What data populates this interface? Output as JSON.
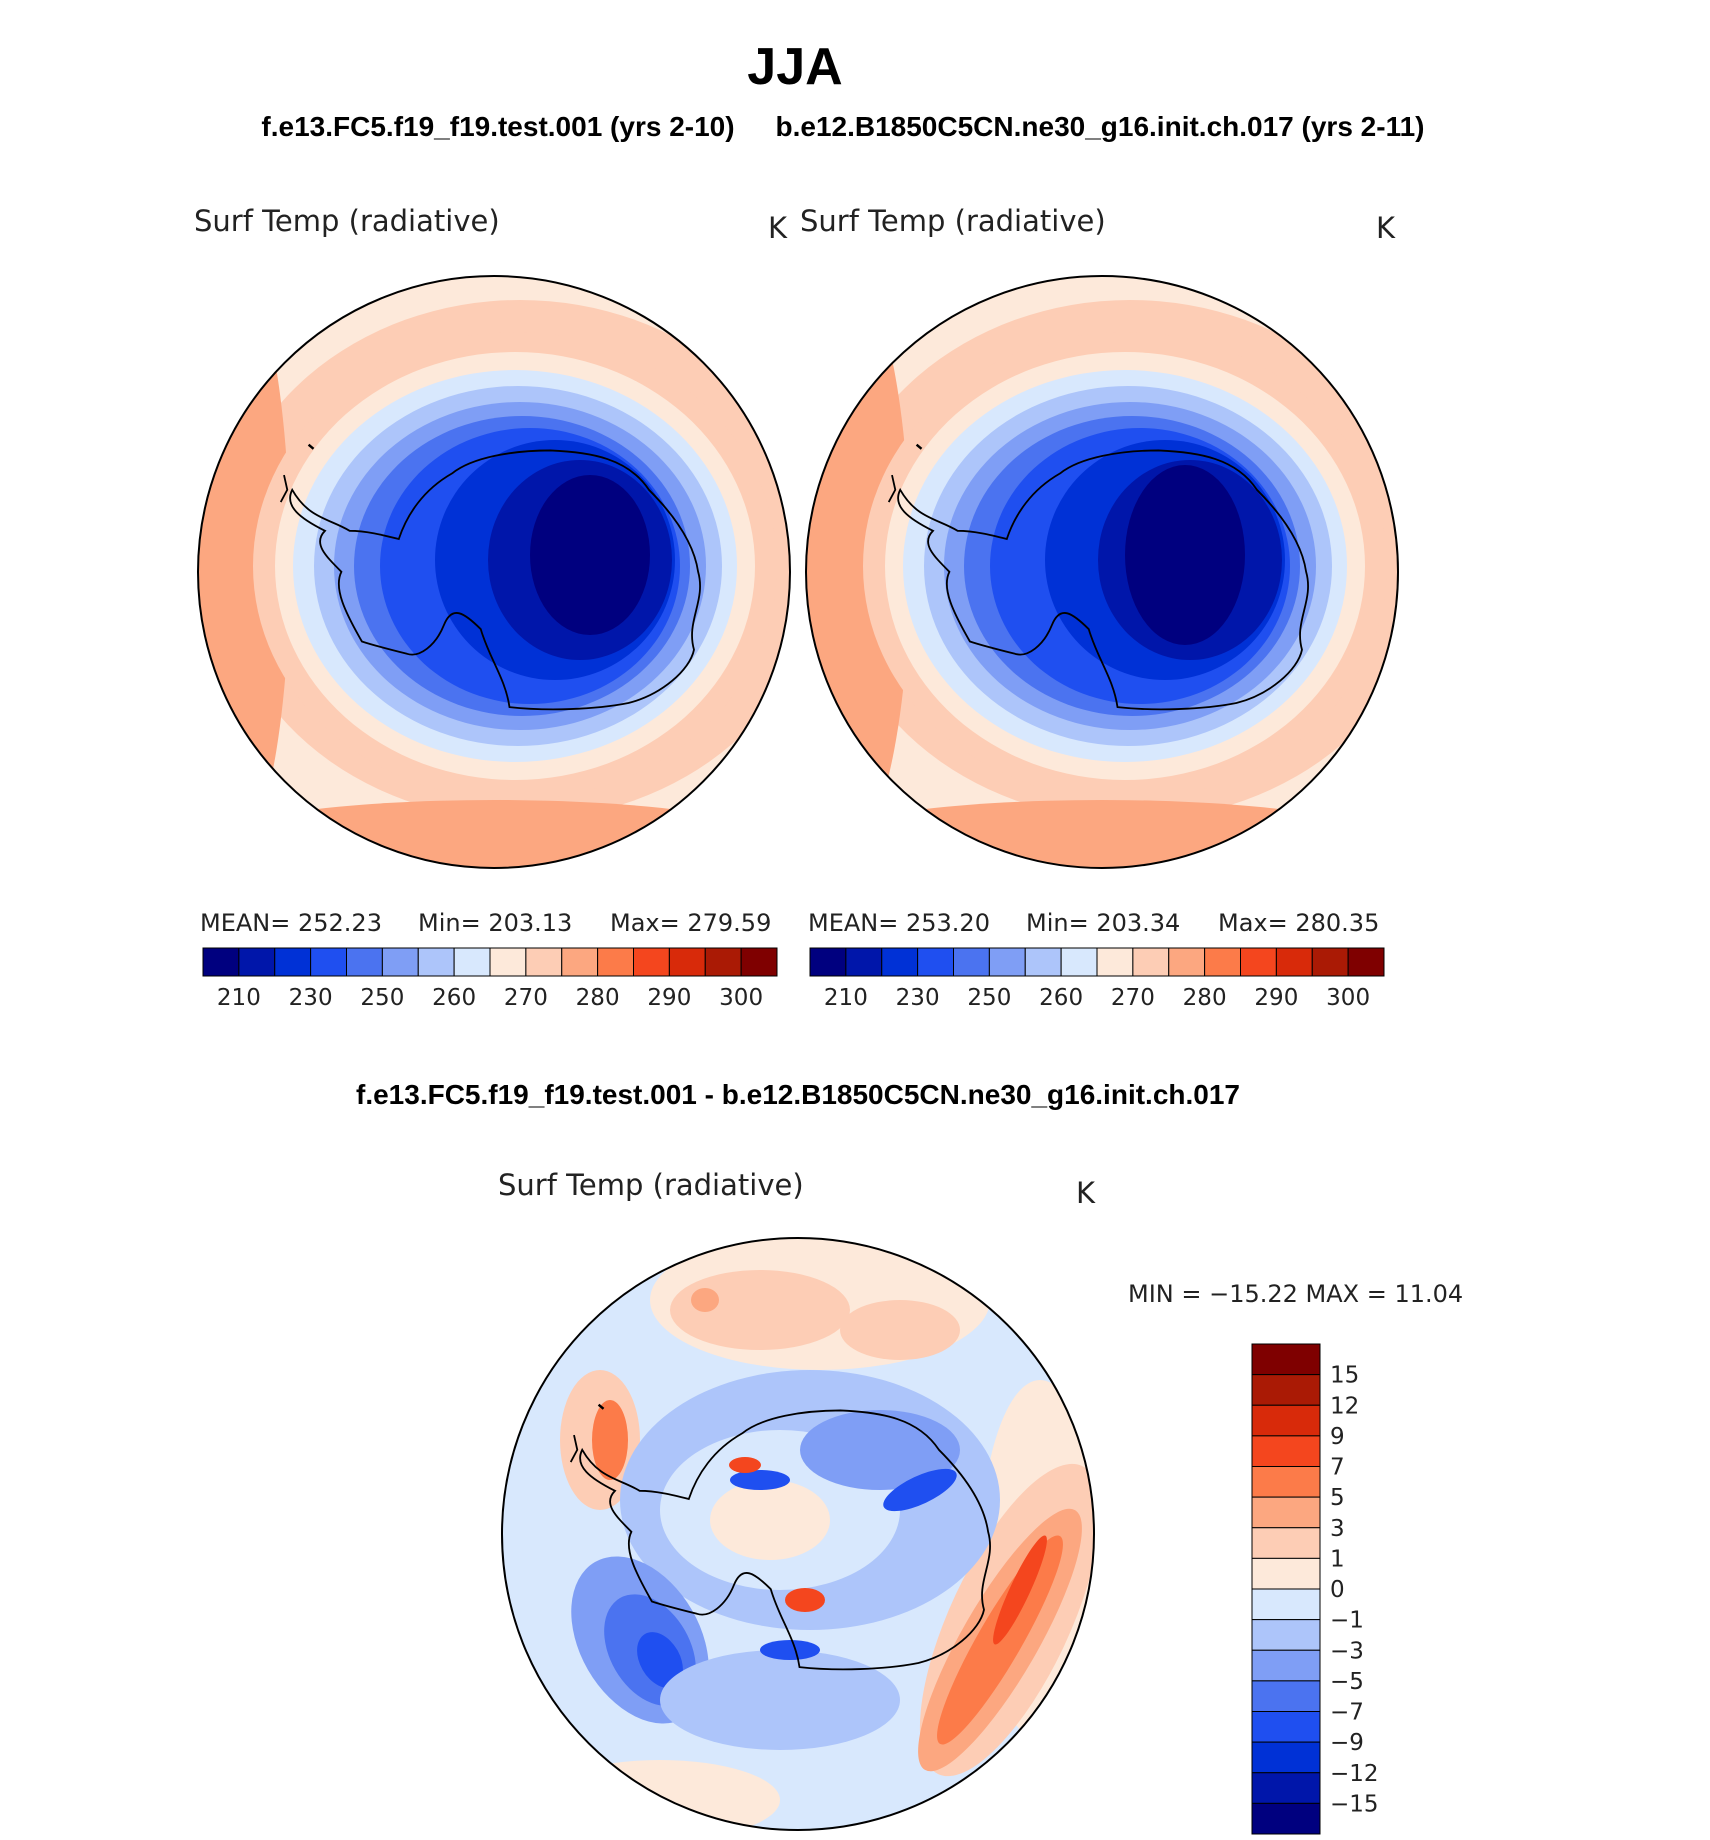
{
  "title": "JJA",
  "top_left_case": "f.e13.FC5.f19_f19.test.001 (yrs 2-10)",
  "top_right_case": "b.e12.B1850C5CN.ne30_g16.init.ch.017 (yrs 2-11)",
  "diff_title": "f.e13.FC5.f19_f19.test.001 - b.e12.B1850C5CN.ne30_g16.init.ch.017",
  "panels": {
    "left": {
      "variable": "Surf Temp (radiative)",
      "units": "K",
      "stats": {
        "mean": "MEAN= 252.23",
        "min": "Min= 203.13",
        "max": "Max= 279.59"
      }
    },
    "right": {
      "variable": "Surf Temp (radiative)",
      "units": "K",
      "stats": {
        "mean": "MEAN= 253.20",
        "min": "Min= 203.34",
        "max": "Max= 280.35"
      }
    },
    "diff": {
      "variable": "Surf Temp (radiative)",
      "units": "K",
      "minmax": "MIN = −15.22 MAX =   11.04"
    }
  },
  "temp_colorbar": {
    "labels": [
      "210",
      "230",
      "250",
      "260",
      "270",
      "280",
      "290",
      "300"
    ],
    "colors": [
      "#00007f",
      "#0016aa",
      "#0031d6",
      "#1f4ff0",
      "#4b73f0",
      "#7f9ef5",
      "#adc5fa",
      "#d8e8fd",
      "#fde9da",
      "#fdcdb5",
      "#fca780",
      "#fc7b49",
      "#f4461e",
      "#d82a0a",
      "#aa1a05",
      "#7f0000"
    ]
  },
  "diff_colorbar": {
    "labels": [
      "15",
      "12",
      "9",
      "7",
      "5",
      "3",
      "1",
      "0",
      "−1",
      "−3",
      "−5",
      "−7",
      "−9",
      "−12",
      "−15"
    ],
    "colors": [
      "#7f0000",
      "#aa1a05",
      "#d82a0a",
      "#f4461e",
      "#fc7b49",
      "#fca780",
      "#fdcdb5",
      "#fde9da",
      "#d8e8fd",
      "#adc5fa",
      "#7f9ef5",
      "#4b73f0",
      "#1f4ff0",
      "#0031d6",
      "#0016aa",
      "#00007f"
    ]
  }
}
